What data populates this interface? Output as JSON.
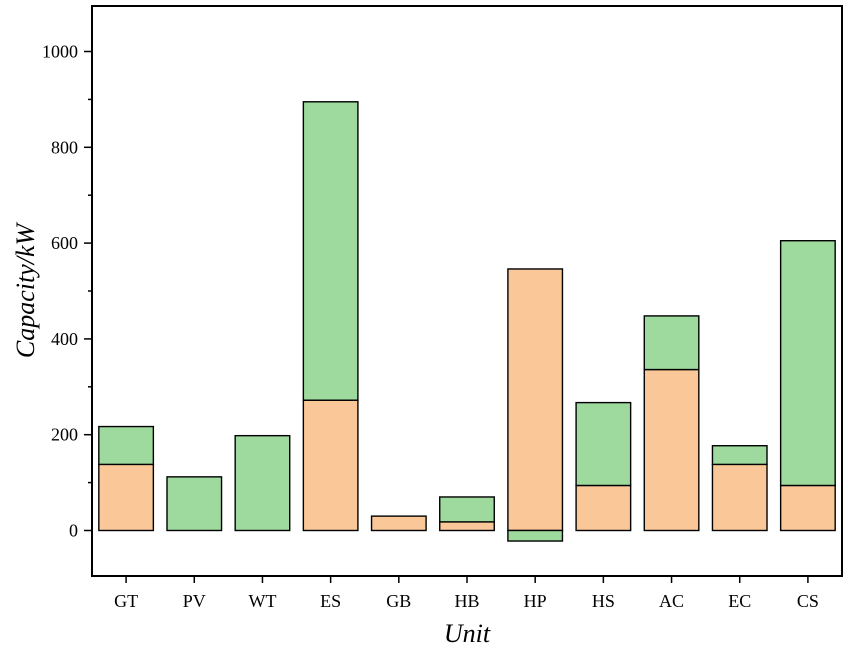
{
  "chart_data": {
    "type": "bar",
    "stacked": true,
    "title": "",
    "xlabel": "Unit",
    "ylabel": "Capacity/kW",
    "categories": [
      "GT",
      "PV",
      "WT",
      "ES",
      "GB",
      "HB",
      "HP",
      "HS",
      "AC",
      "EC",
      "CS"
    ],
    "ylim": [
      -95,
      1095
    ],
    "yticks": [
      0,
      200,
      400,
      600,
      800,
      1000
    ],
    "grid": false,
    "legend": "none",
    "series": [
      {
        "color": "#fac898",
        "values": [
          138,
          0,
          0,
          272,
          30,
          18,
          546,
          94,
          336,
          138,
          94
        ]
      },
      {
        "color": "#9ed99e",
        "values": [
          79,
          112,
          198,
          623,
          0,
          52,
          -22,
          173,
          112,
          39,
          511
        ]
      }
    ]
  }
}
